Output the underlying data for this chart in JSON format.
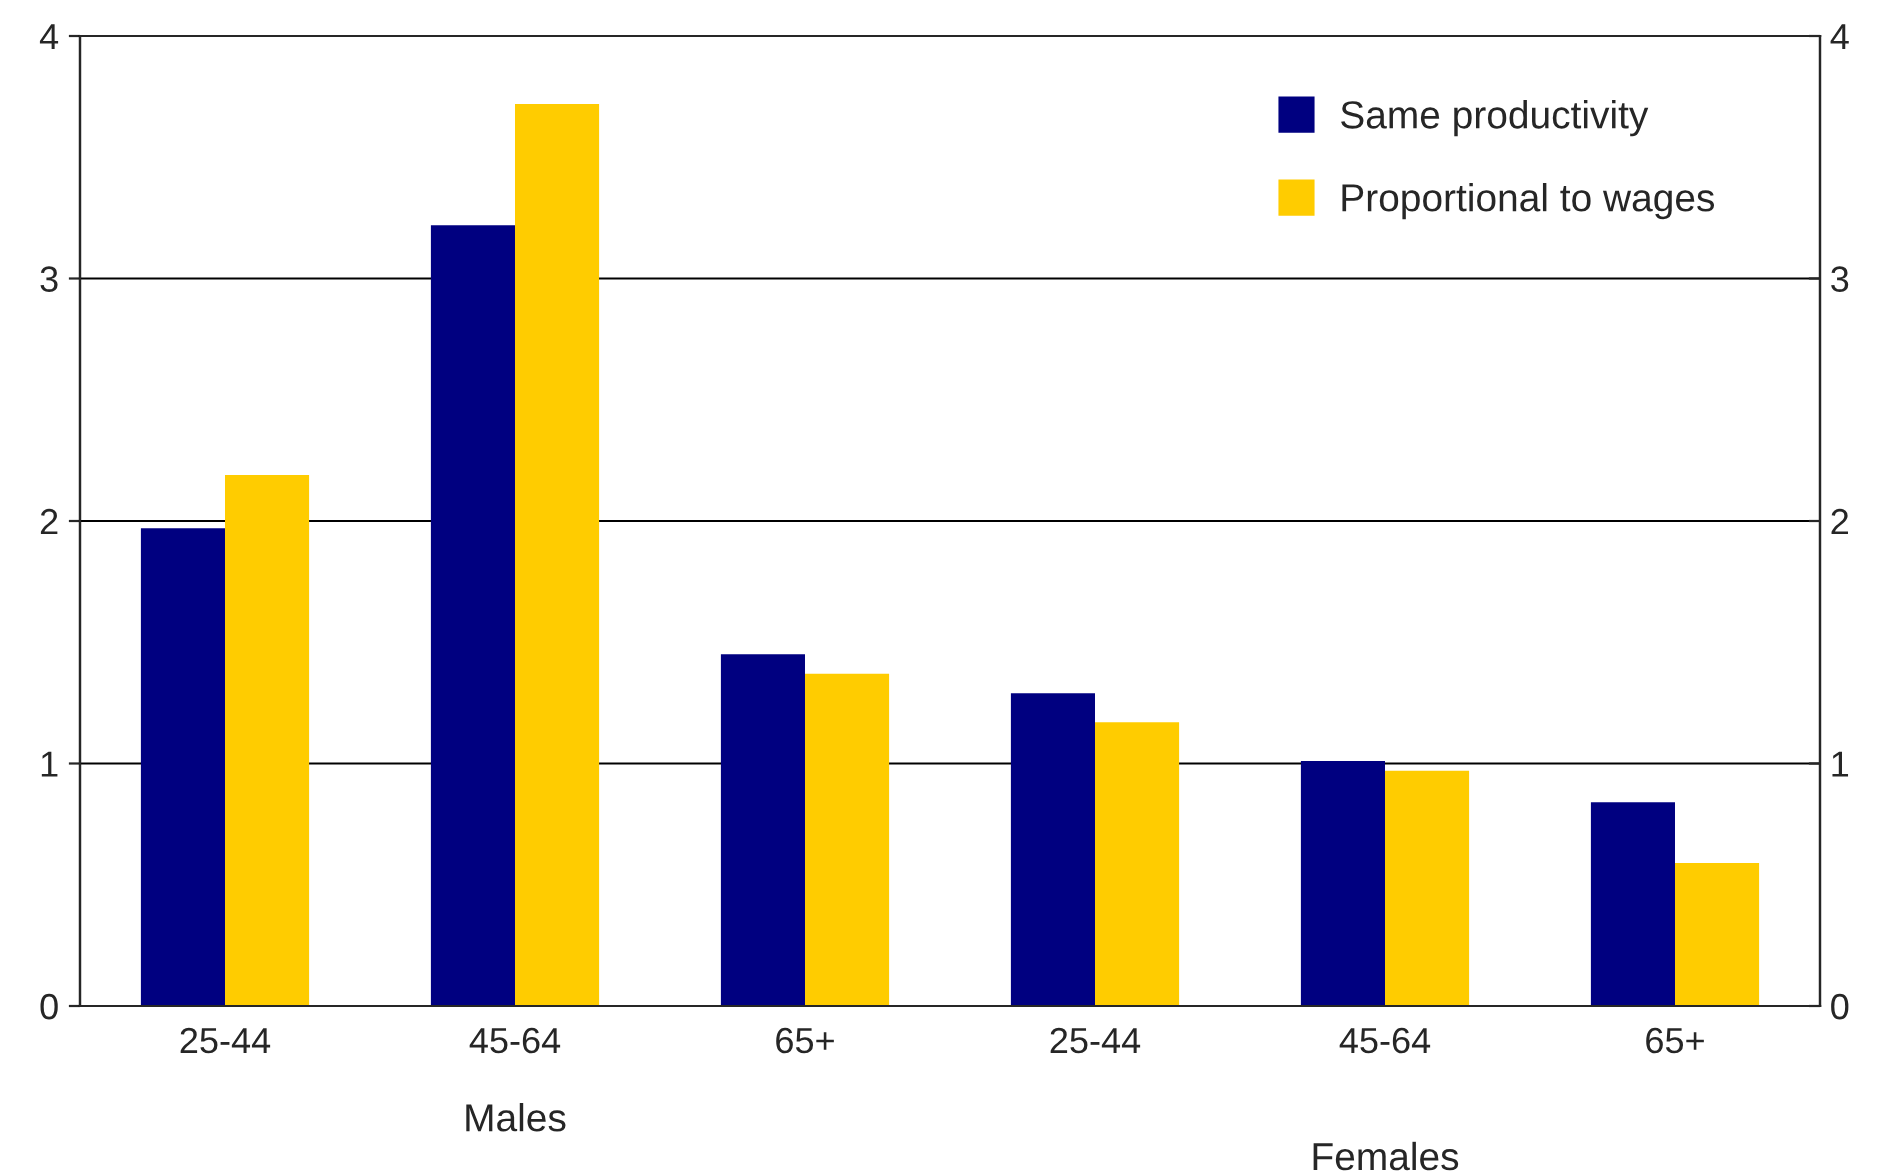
{
  "chart_data": {
    "type": "bar",
    "categories": [
      "25-44",
      "45-64",
      "65+",
      "25-44",
      "45-64",
      "65+"
    ],
    "series": [
      {
        "name": "Same productivity",
        "color": "#000080",
        "values": [
          1.97,
          3.22,
          1.45,
          1.29,
          1.01,
          0.84
        ]
      },
      {
        "name": "Proportional to wages",
        "color": "#ffcc00",
        "values": [
          2.19,
          3.72,
          1.37,
          1.17,
          0.97,
          0.59
        ]
      }
    ],
    "ylim": [
      0,
      4
    ],
    "yticks": [
      0,
      1,
      2,
      3,
      4
    ],
    "y2lim": [
      0,
      4
    ],
    "y2ticks": [
      0,
      1,
      2,
      3,
      4
    ],
    "grid": "y",
    "legend": "top right",
    "annotations": [
      "Males",
      "Females"
    ]
  }
}
